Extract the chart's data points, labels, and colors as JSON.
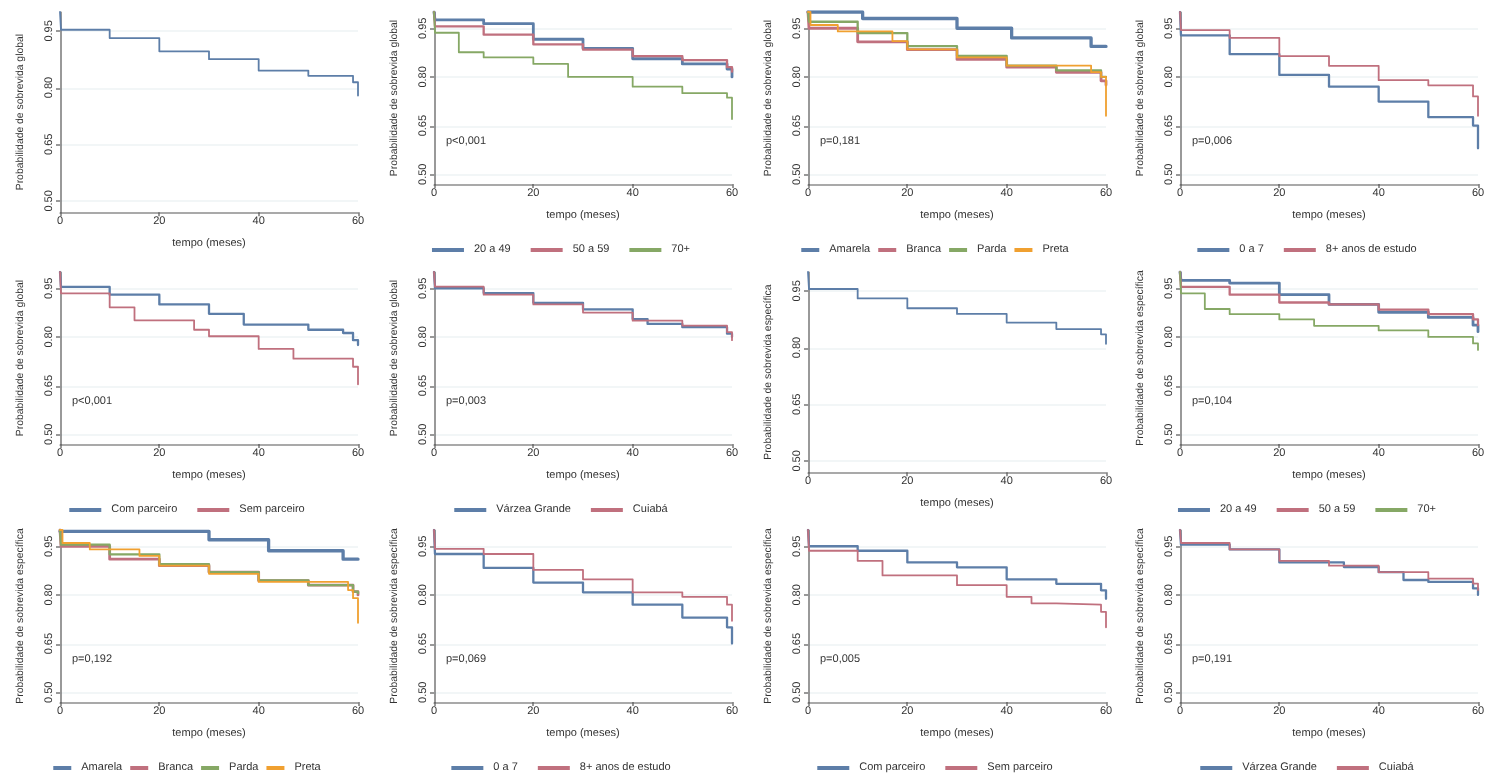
{
  "chart_data": [
    {
      "type": "step",
      "xlabel": "tempo (meses)",
      "ylabel": "Probabilidade de sobrevida global",
      "xlim": [
        0,
        60
      ],
      "xticks": [
        0,
        20,
        40,
        60
      ],
      "ylim": [
        0.47,
        1.0
      ],
      "yticks": [
        {
          "value": 0.5,
          "label": "0.50"
        },
        {
          "value": 0.65,
          "label": "0.65"
        },
        {
          "value": 0.8,
          "label": "0.80"
        },
        {
          "value": 0.95,
          "label": "0.95"
        }
      ],
      "grid": "y",
      "marker": "none",
      "series": [
        {
          "color": "#5d7ea8",
          "x": [
            0,
            0.2,
            10,
            20,
            30,
            40,
            50,
            59,
            60
          ],
          "values": [
            1.0,
            0.953,
            0.931,
            0.896,
            0.875,
            0.845,
            0.831,
            0.814,
            0.779
          ]
        }
      ]
    },
    {
      "type": "step",
      "xlabel": "tempo (meses)",
      "ylabel": "Probabilidade de sobrevida global",
      "xlim": [
        0,
        60
      ],
      "xticks": [
        0,
        20,
        40,
        60
      ],
      "ylim": [
        0.47,
        1.0
      ],
      "yticks": [
        {
          "value": 0.5,
          "label": "0.50"
        },
        {
          "value": 0.65,
          "label": "0.65"
        },
        {
          "value": 0.8,
          "label": "0.80"
        },
        {
          "value": 0.95,
          "label": "0.95"
        }
      ],
      "grid": "y",
      "marker": "none",
      "legend": "bottom",
      "annotations": [
        "p<0,001"
      ],
      "series": [
        {
          "name": "20 a 49",
          "color": "#5d7ea8",
          "x": [
            0,
            0.2,
            10,
            20,
            30,
            40,
            50,
            59,
            60
          ],
          "values": [
            1.0,
            0.976,
            0.964,
            0.916,
            0.888,
            0.856,
            0.84,
            0.824,
            0.8
          ]
        },
        {
          "name": "50 a 59",
          "color": "#c0707e",
          "x": [
            0,
            0.2,
            10,
            20,
            30,
            40,
            50,
            59,
            60
          ],
          "values": [
            1.0,
            0.956,
            0.93,
            0.9,
            0.884,
            0.864,
            0.852,
            0.83,
            0.816
          ]
        },
        {
          "name": "70+",
          "color": "#86a865",
          "x": [
            0,
            0.2,
            5,
            10,
            20,
            27,
            40,
            50,
            59,
            60
          ],
          "values": [
            1.0,
            0.936,
            0.876,
            0.86,
            0.84,
            0.8,
            0.77,
            0.75,
            0.736,
            0.67
          ]
        }
      ]
    },
    {
      "type": "step",
      "xlabel": "tempo (meses)",
      "ylabel": "Probabilidade de sobrevida global",
      "xlim": [
        0,
        60
      ],
      "xticks": [
        0,
        20,
        40,
        60
      ],
      "ylim": [
        0.47,
        1.0
      ],
      "yticks": [
        {
          "value": 0.5,
          "label": "0.50"
        },
        {
          "value": 0.65,
          "label": "0.65"
        },
        {
          "value": 0.8,
          "label": "0.80"
        },
        {
          "value": 0.95,
          "label": "0.95"
        }
      ],
      "grid": "y",
      "marker": "none",
      "legend": "bottom",
      "annotations": [
        "p=0,181"
      ],
      "series": [
        {
          "name": "Amarela",
          "color": "#5d7ea8",
          "x": [
            0,
            11,
            30,
            41,
            57,
            60
          ],
          "values": [
            1.0,
            0.98,
            0.95,
            0.92,
            0.894,
            0.894
          ]
        },
        {
          "name": "Branca",
          "color": "#c0707e",
          "x": [
            0,
            0.2,
            10,
            20,
            30,
            40,
            50,
            59,
            60
          ],
          "values": [
            1.0,
            0.95,
            0.908,
            0.884,
            0.854,
            0.83,
            0.814,
            0.788,
            0.775
          ]
        },
        {
          "name": "Parda",
          "color": "#86a865",
          "x": [
            0,
            0.2,
            10,
            20,
            30,
            40,
            50,
            59,
            60
          ],
          "values": [
            1.0,
            0.97,
            0.935,
            0.895,
            0.865,
            0.835,
            0.82,
            0.8,
            0.8
          ]
        },
        {
          "name": "Preta",
          "color": "#f0a030",
          "x": [
            0,
            0.5,
            6,
            17,
            20,
            30,
            40,
            57,
            59,
            60
          ],
          "values": [
            1.0,
            0.96,
            0.94,
            0.91,
            0.885,
            0.86,
            0.835,
            0.815,
            0.8,
            0.68
          ]
        }
      ]
    },
    {
      "type": "step",
      "xlabel": "tempo (meses)",
      "ylabel": "Probabilidade de sobrevida global",
      "xlim": [
        0,
        60
      ],
      "xticks": [
        0,
        20,
        40,
        60
      ],
      "ylim": [
        0.47,
        1.0
      ],
      "yticks": [
        {
          "value": 0.5,
          "label": "0.50"
        },
        {
          "value": 0.65,
          "label": "0.65"
        },
        {
          "value": 0.8,
          "label": "0.80"
        },
        {
          "value": 0.95,
          "label": "0.95"
        }
      ],
      "grid": "y",
      "marker": "none",
      "legend": "bottom",
      "annotations": [
        "p=0,006"
      ],
      "series": [
        {
          "name": "0 a 7",
          "color": "#5d7ea8",
          "x": [
            0,
            0.2,
            10,
            20,
            30,
            40,
            50,
            59,
            60
          ],
          "values": [
            1.0,
            0.928,
            0.87,
            0.806,
            0.77,
            0.724,
            0.676,
            0.65,
            0.58
          ]
        },
        {
          "name": "8+ anos de estudo",
          "color": "#c0707e",
          "x": [
            0,
            0.2,
            10,
            20,
            30,
            40,
            50,
            59,
            60
          ],
          "values": [
            1.0,
            0.944,
            0.92,
            0.864,
            0.834,
            0.79,
            0.774,
            0.74,
            0.68
          ]
        }
      ]
    },
    {
      "type": "step",
      "xlabel": "tempo (meses)",
      "ylabel": "Probabilidade de sobrevida global",
      "xlim": [
        0,
        60
      ],
      "xticks": [
        0,
        20,
        40,
        60
      ],
      "ylim": [
        0.47,
        1.0
      ],
      "yticks": [
        {
          "value": 0.5,
          "label": "0.50"
        },
        {
          "value": 0.65,
          "label": "0.65"
        },
        {
          "value": 0.8,
          "label": "0.80"
        },
        {
          "value": 0.95,
          "label": "0.95"
        }
      ],
      "grid": "y",
      "marker": "none",
      "legend": "bottom",
      "annotations": [
        "p<0,001"
      ],
      "series": [
        {
          "name": "Com parceiro",
          "color": "#5d7ea8",
          "x": [
            0,
            0.2,
            10,
            20,
            30,
            37,
            50,
            57,
            59,
            60
          ],
          "values": [
            1.0,
            0.954,
            0.93,
            0.9,
            0.871,
            0.838,
            0.822,
            0.812,
            0.79,
            0.775
          ]
        },
        {
          "name": "Sem parceiro",
          "color": "#c0707e",
          "x": [
            0,
            0.2,
            10,
            15,
            27,
            30,
            40,
            47,
            59,
            60
          ],
          "values": [
            1.0,
            0.934,
            0.891,
            0.851,
            0.822,
            0.802,
            0.763,
            0.733,
            0.708,
            0.654
          ]
        }
      ]
    },
    {
      "type": "step",
      "xlabel": "tempo (meses)",
      "ylabel": "Probabilidade de sobrevida global",
      "xlim": [
        0,
        60
      ],
      "xticks": [
        0,
        20,
        40,
        60
      ],
      "ylim": [
        0.47,
        1.0
      ],
      "yticks": [
        {
          "value": 0.5,
          "label": "0.50"
        },
        {
          "value": 0.65,
          "label": "0.65"
        },
        {
          "value": 0.8,
          "label": "0.80"
        },
        {
          "value": 0.95,
          "label": "0.95"
        }
      ],
      "grid": "y",
      "marker": "none",
      "legend": "bottom",
      "annotations": [
        "p=0,003"
      ],
      "series": [
        {
          "name": "Várzea Grande",
          "color": "#5d7ea8",
          "x": [
            0,
            0.2,
            10,
            20,
            30,
            40,
            43,
            50,
            59,
            60
          ],
          "values": [
            1.0,
            0.95,
            0.935,
            0.905,
            0.885,
            0.855,
            0.84,
            0.83,
            0.81,
            0.8
          ]
        },
        {
          "name": "Cuiabá",
          "color": "#c0707e",
          "x": [
            0,
            0.2,
            10,
            20,
            30,
            40,
            50,
            59,
            60
          ],
          "values": [
            1.0,
            0.955,
            0.93,
            0.9,
            0.875,
            0.85,
            0.835,
            0.815,
            0.79
          ]
        }
      ]
    },
    {
      "type": "step",
      "xlabel": "tempo (meses)",
      "ylabel": "Probabilidade de sobrevida específica",
      "xlim": [
        0,
        60
      ],
      "xticks": [
        0,
        20,
        40,
        60
      ],
      "ylim": [
        0.47,
        1.0
      ],
      "yticks": [
        {
          "value": 0.5,
          "label": "0.50"
        },
        {
          "value": 0.65,
          "label": "0.65"
        },
        {
          "value": 0.8,
          "label": "0.80"
        },
        {
          "value": 0.95,
          "label": "0.95"
        }
      ],
      "grid": "y",
      "marker": "none",
      "series": [
        {
          "color": "#5d7ea8",
          "x": [
            0,
            0.2,
            10,
            20,
            30,
            40,
            50,
            59,
            60
          ],
          "values": [
            1.0,
            0.955,
            0.93,
            0.904,
            0.889,
            0.866,
            0.849,
            0.835,
            0.81
          ]
        }
      ]
    },
    {
      "type": "step",
      "xlabel": "tempo (meses)",
      "ylabel": "Probabilidade de sobrevida específica",
      "xlim": [
        0,
        60
      ],
      "xticks": [
        0,
        20,
        40,
        60
      ],
      "ylim": [
        0.47,
        1.0
      ],
      "yticks": [
        {
          "value": 0.5,
          "label": "0.50"
        },
        {
          "value": 0.65,
          "label": "0.65"
        },
        {
          "value": 0.8,
          "label": "0.80"
        },
        {
          "value": 0.95,
          "label": "0.95"
        }
      ],
      "grid": "y",
      "marker": "none",
      "legend": "bottom",
      "annotations": [
        "p=0,104"
      ],
      "series": [
        {
          "name": "20 a 49",
          "color": "#5d7ea8",
          "x": [
            0,
            0.2,
            10,
            20,
            30,
            40,
            50,
            59,
            60
          ],
          "values": [
            1.0,
            0.974,
            0.966,
            0.93,
            0.9,
            0.876,
            0.86,
            0.836,
            0.816
          ]
        },
        {
          "name": "50 a 59",
          "color": "#c0707e",
          "x": [
            0,
            0.2,
            10,
            20,
            30,
            40,
            50,
            59,
            60
          ],
          "values": [
            1.0,
            0.954,
            0.93,
            0.906,
            0.9,
            0.884,
            0.87,
            0.854,
            0.836
          ]
        },
        {
          "name": "70+",
          "color": "#86a865",
          "x": [
            0,
            0.2,
            5,
            10,
            20,
            27,
            40,
            50,
            59,
            60
          ],
          "values": [
            1.0,
            0.934,
            0.886,
            0.87,
            0.854,
            0.834,
            0.82,
            0.8,
            0.78,
            0.76
          ]
        }
      ]
    },
    {
      "type": "step",
      "xlabel": "tempo (meses)",
      "ylabel": "Probabilidade de sobrevida específica",
      "xlim": [
        0,
        60
      ],
      "xticks": [
        0,
        20,
        40,
        60
      ],
      "ylim": [
        0.47,
        1.0
      ],
      "yticks": [
        {
          "value": 0.5,
          "label": "0.50"
        },
        {
          "value": 0.65,
          "label": "0.65"
        },
        {
          "value": 0.8,
          "label": "0.80"
        },
        {
          "value": 0.95,
          "label": "0.95"
        }
      ],
      "grid": "y",
      "marker": "none",
      "legend": "bottom",
      "annotations": [
        "p=0,192"
      ],
      "series": [
        {
          "name": "Amarela",
          "color": "#5d7ea8",
          "x": [
            0,
            30,
            42,
            57,
            60
          ],
          "values": [
            0.996,
            0.97,
            0.936,
            0.91,
            0.91
          ]
        },
        {
          "name": "Branca",
          "color": "#c0707e",
          "x": [
            0,
            0.2,
            10,
            20,
            30,
            40,
            50,
            59,
            60
          ],
          "values": [
            1.0,
            0.95,
            0.91,
            0.89,
            0.87,
            0.844,
            0.83,
            0.81,
            0.8
          ]
        },
        {
          "name": "Parda",
          "color": "#86a865",
          "x": [
            0,
            0.2,
            10,
            20,
            30,
            40,
            50,
            59,
            60
          ],
          "values": [
            1.0,
            0.955,
            0.925,
            0.895,
            0.87,
            0.845,
            0.83,
            0.81,
            0.805
          ]
        },
        {
          "name": "Preta",
          "color": "#f0a030",
          "x": [
            0,
            0.5,
            6,
            16,
            20,
            30,
            40,
            58,
            59,
            60
          ],
          "values": [
            1.0,
            0.96,
            0.94,
            0.92,
            0.89,
            0.865,
            0.84,
            0.815,
            0.79,
            0.714
          ]
        }
      ]
    },
    {
      "type": "step",
      "xlabel": "tempo (meses)",
      "ylabel": "Probabilidade de sobrevida específica",
      "xlim": [
        0,
        60
      ],
      "xticks": [
        0,
        20,
        40,
        60
      ],
      "ylim": [
        0.47,
        1.0
      ],
      "yticks": [
        {
          "value": 0.5,
          "label": "0.50"
        },
        {
          "value": 0.65,
          "label": "0.65"
        },
        {
          "value": 0.8,
          "label": "0.80"
        },
        {
          "value": 0.95,
          "label": "0.95"
        }
      ],
      "grid": "y",
      "marker": "none",
      "legend": "bottom",
      "annotations": [
        "p=0,069"
      ],
      "series": [
        {
          "name": "0 a 7",
          "color": "#5d7ea8",
          "x": [
            0,
            0.2,
            10,
            20,
            30,
            40,
            50,
            59,
            60
          ],
          "values": [
            1.0,
            0.926,
            0.883,
            0.838,
            0.808,
            0.77,
            0.73,
            0.7,
            0.65
          ]
        },
        {
          "name": "8+ anos de estudo",
          "color": "#c0707e",
          "x": [
            0,
            0.2,
            10,
            20,
            30,
            40,
            50,
            59,
            60
          ],
          "values": [
            1.0,
            0.942,
            0.926,
            0.877,
            0.848,
            0.808,
            0.794,
            0.77,
            0.72
          ]
        }
      ]
    },
    {
      "type": "step",
      "xlabel": "tempo (meses)",
      "ylabel": "Probabilidade de sobrevida específica",
      "xlim": [
        0,
        60
      ],
      "xticks": [
        0,
        20,
        40,
        60
      ],
      "ylim": [
        0.47,
        1.0
      ],
      "yticks": [
        {
          "value": 0.5,
          "label": "0.50"
        },
        {
          "value": 0.65,
          "label": "0.65"
        },
        {
          "value": 0.8,
          "label": "0.80"
        },
        {
          "value": 0.95,
          "label": "0.95"
        }
      ],
      "grid": "y",
      "marker": "none",
      "legend": "bottom",
      "annotations": [
        "p=0,005"
      ],
      "series": [
        {
          "name": "Com parceiro",
          "color": "#5d7ea8",
          "x": [
            0,
            0.2,
            10,
            20,
            30,
            40,
            50,
            59,
            60
          ],
          "values": [
            1.0,
            0.95,
            0.936,
            0.9,
            0.885,
            0.848,
            0.834,
            0.814,
            0.788
          ]
        },
        {
          "name": "Sem parceiro",
          "color": "#c0707e",
          "x": [
            0,
            0.2,
            10,
            15,
            30,
            40,
            45,
            50,
            59,
            60
          ],
          "values": [
            1.0,
            0.936,
            0.905,
            0.86,
            0.83,
            0.794,
            0.774,
            0.77,
            0.748,
            0.7
          ]
        }
      ]
    },
    {
      "type": "step",
      "xlabel": "tempo (meses)",
      "ylabel": "Probabilidade de sobrevida específica",
      "xlim": [
        0,
        60
      ],
      "xticks": [
        0,
        20,
        40,
        60
      ],
      "ylim": [
        0.47,
        1.0
      ],
      "yticks": [
        {
          "value": 0.5,
          "label": "0.50"
        },
        {
          "value": 0.65,
          "label": "0.65"
        },
        {
          "value": 0.8,
          "label": "0.80"
        },
        {
          "value": 0.95,
          "label": "0.95"
        }
      ],
      "grid": "y",
      "marker": "none",
      "legend": "bottom",
      "annotations": [
        "p=0,191"
      ],
      "series": [
        {
          "name": "Várzea Grande",
          "color": "#5d7ea8",
          "x": [
            0,
            0.2,
            10,
            20,
            33,
            40,
            45,
            50,
            59,
            60
          ],
          "values": [
            1.0,
            0.955,
            0.94,
            0.9,
            0.886,
            0.87,
            0.846,
            0.84,
            0.82,
            0.8
          ]
        },
        {
          "name": "Cuiabá",
          "color": "#c0707e",
          "x": [
            0,
            0.2,
            10,
            20,
            30,
            40,
            50,
            59,
            60
          ],
          "values": [
            1.0,
            0.96,
            0.94,
            0.905,
            0.89,
            0.87,
            0.85,
            0.835,
            0.815
          ]
        }
      ]
    }
  ]
}
